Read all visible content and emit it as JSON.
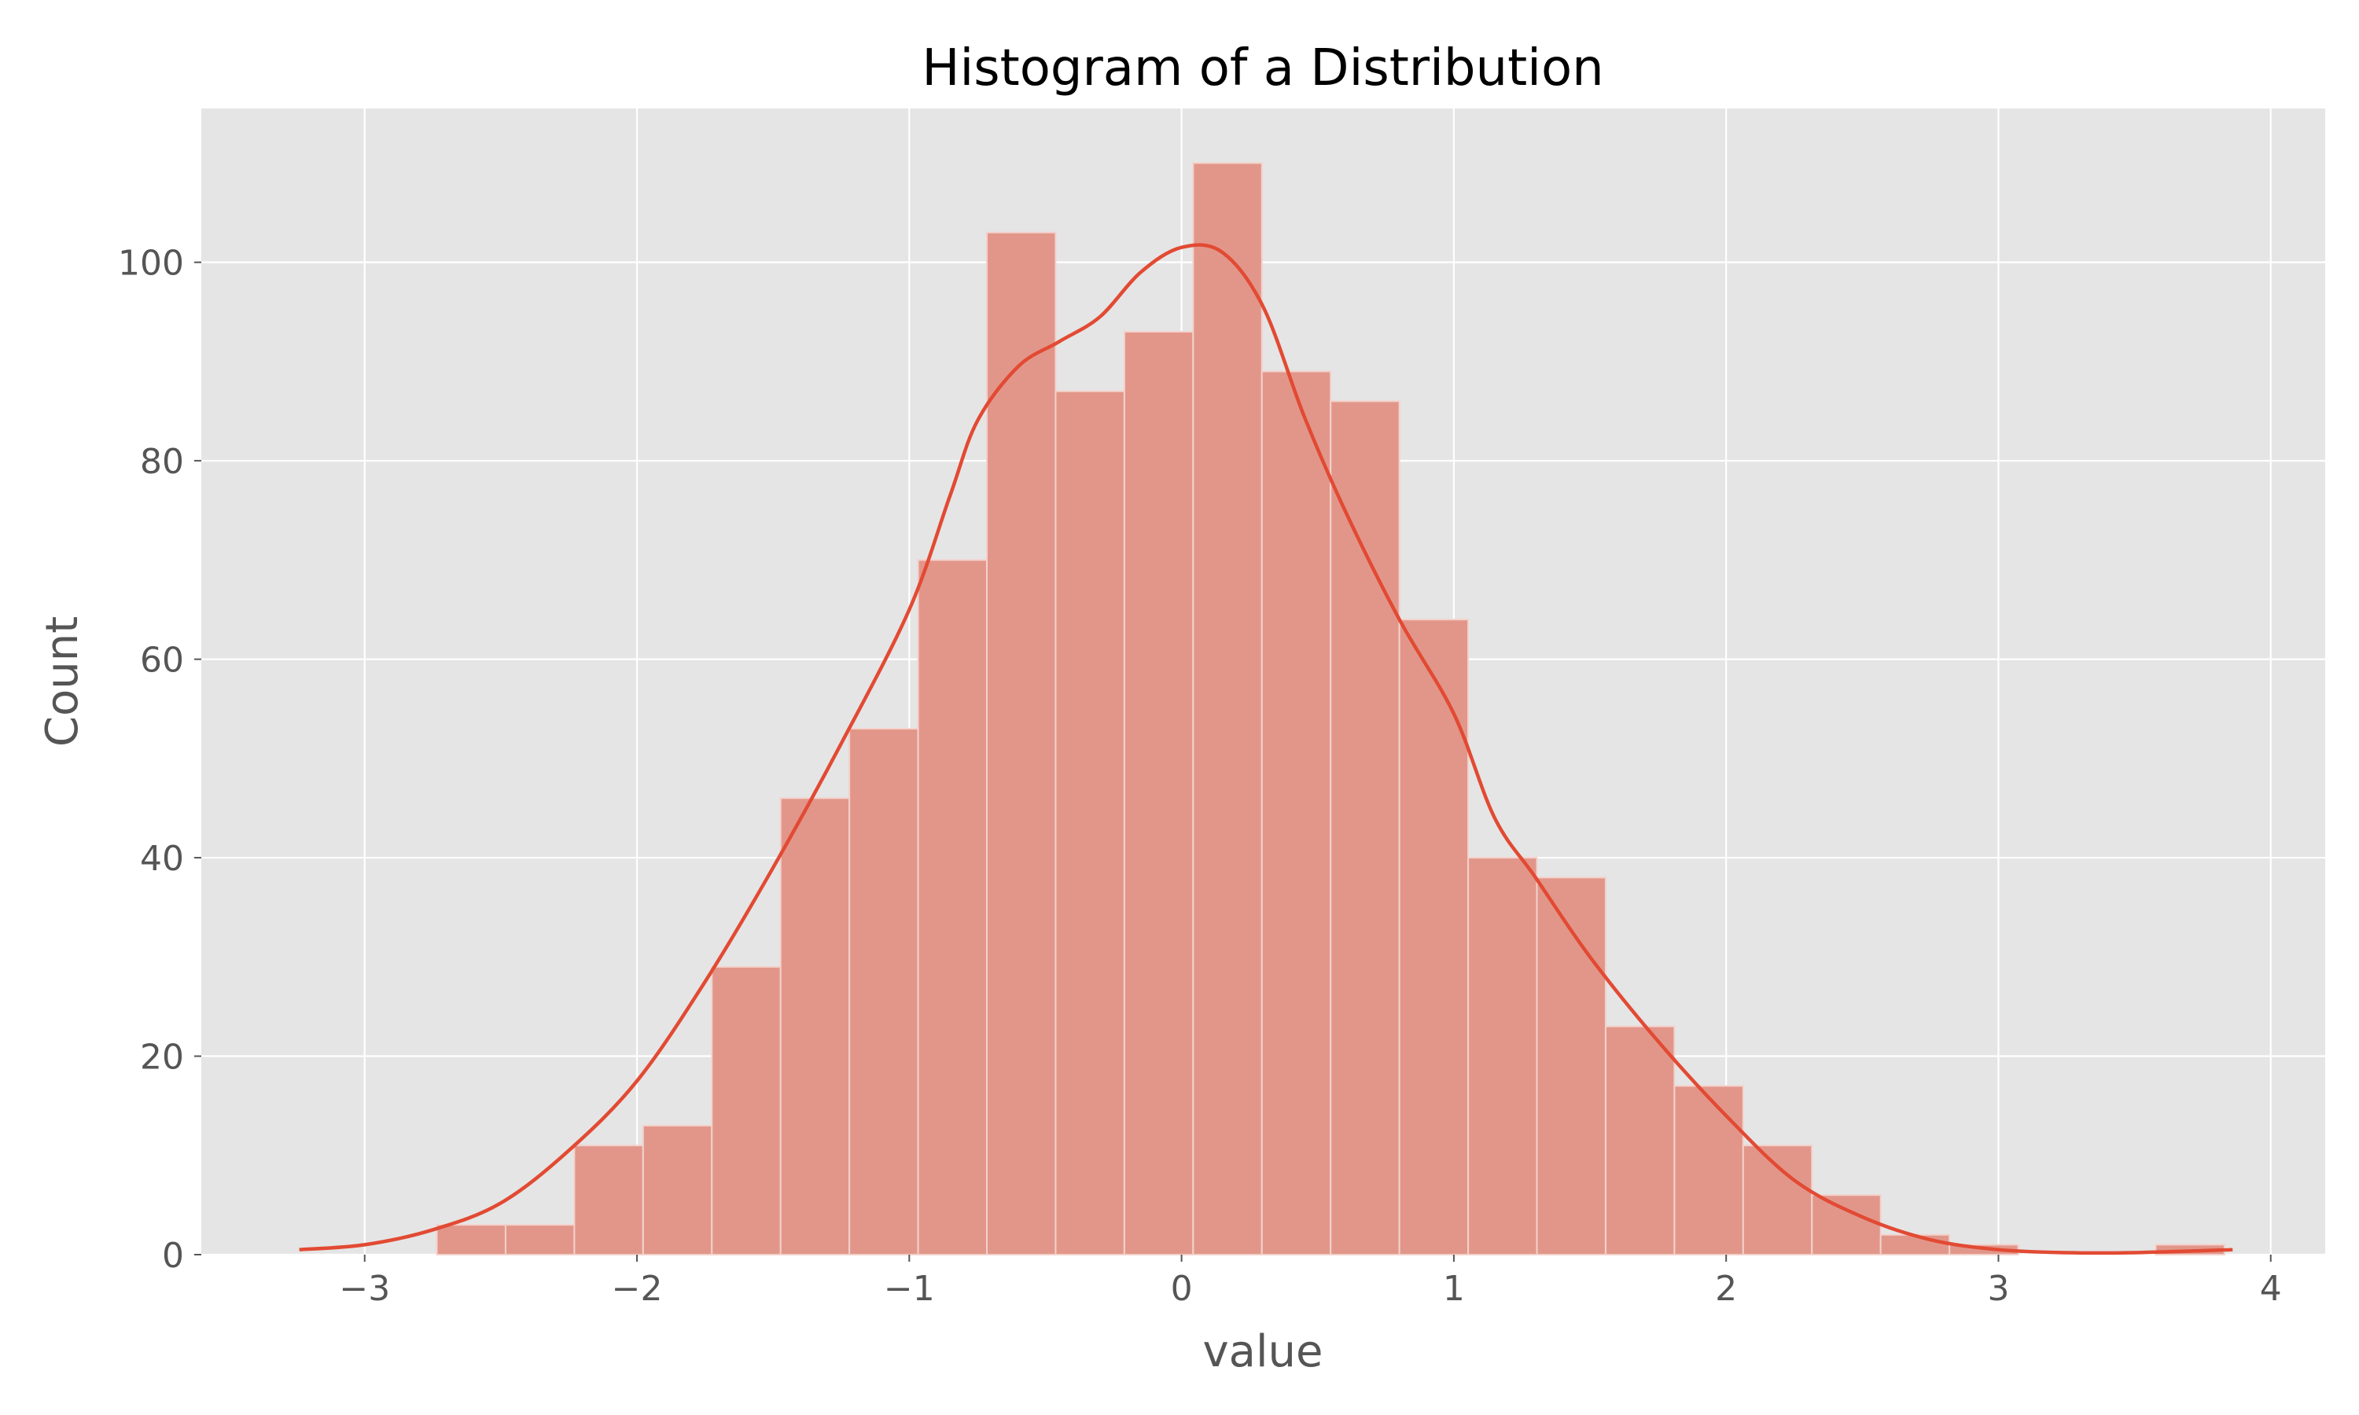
{
  "chart_data": {
    "type": "bar",
    "title": "Histogram of a Distribution",
    "xlabel": "value",
    "ylabel": "Count",
    "xlim": [
      -3.6,
      4.2
    ],
    "ylim": [
      0,
      115.5
    ],
    "grid": true,
    "bins": {
      "start": -3.24,
      "width": 0.2525,
      "counts": [
        0,
        0,
        3,
        3,
        11,
        13,
        29,
        46,
        53,
        70,
        103,
        87,
        93,
        110,
        89,
        86,
        64,
        40,
        38,
        23,
        17,
        11,
        6,
        2,
        1,
        0,
        0,
        1
      ]
    },
    "kde": {
      "x": [
        -3.24,
        -3.0,
        -2.75,
        -2.5,
        -2.25,
        -2.0,
        -1.75,
        -1.5,
        -1.25,
        -1.0,
        -0.85,
        -0.75,
        -0.6,
        -0.45,
        -0.3,
        -0.15,
        0.0,
        0.15,
        0.3,
        0.45,
        0.6,
        0.8,
        1.0,
        1.15,
        1.3,
        1.5,
        1.75,
        2.0,
        2.25,
        2.5,
        2.75,
        3.0,
        3.25,
        3.5,
        3.86
      ],
      "y": [
        0.5,
        1.0,
        2.5,
        5.2,
        10.5,
        17.5,
        27.5,
        39,
        51.5,
        65,
        76.5,
        84,
        89.5,
        92,
        94.5,
        99,
        101.5,
        101,
        95.5,
        84.5,
        75,
        64,
        54.5,
        44,
        38,
        30,
        21.5,
        14,
        7.5,
        3.8,
        1.5,
        0.5,
        0.2,
        0.2,
        0.5
      ]
    },
    "xticks": [
      {
        "value": -3,
        "label": "−3"
      },
      {
        "value": -2,
        "label": "−2"
      },
      {
        "value": -1,
        "label": "−1"
      },
      {
        "value": 0,
        "label": "0"
      },
      {
        "value": 1,
        "label": "1"
      },
      {
        "value": 2,
        "label": "2"
      },
      {
        "value": 3,
        "label": "3"
      },
      {
        "value": 4,
        "label": "4"
      }
    ],
    "yticks": [
      {
        "value": 0,
        "label": "0"
      },
      {
        "value": 20,
        "label": "20"
      },
      {
        "value": 40,
        "label": "40"
      },
      {
        "value": 60,
        "label": "60"
      },
      {
        "value": 80,
        "label": "80"
      },
      {
        "value": 100,
        "label": "100"
      }
    ],
    "colors": {
      "plot_background": "#e5e5e5",
      "grid": "#ffffff",
      "bar_fill": "#e2968a",
      "bar_edge": "#f3d2cc",
      "kde_line": "#e24a33",
      "tick_color": "#555555"
    }
  }
}
